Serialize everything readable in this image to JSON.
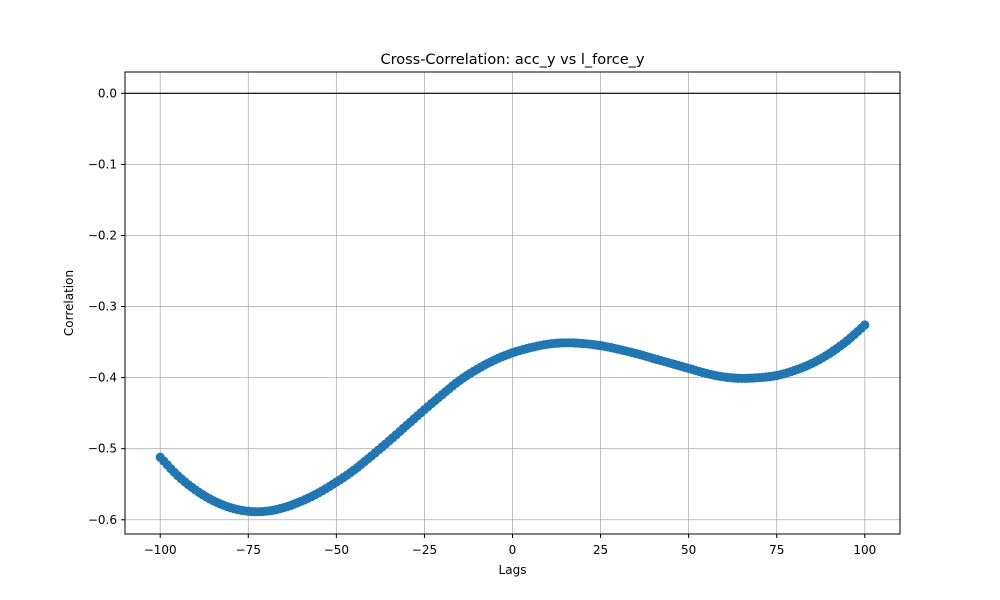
{
  "chart_data": {
    "type": "scatter",
    "title": "Cross-Correlation: acc_y vs l_force_y",
    "xlabel": "Lags",
    "ylabel": "Correlation",
    "xlim": [
      -110,
      110
    ],
    "ylim": [
      -0.62,
      0.03
    ],
    "x_ticks": [
      -100,
      -75,
      -50,
      -25,
      0,
      25,
      50,
      75,
      100
    ],
    "x_tick_labels": [
      "−100",
      "−75",
      "−50",
      "−25",
      "0",
      "25",
      "50",
      "75",
      "100"
    ],
    "y_ticks": [
      0.0,
      -0.1,
      -0.2,
      -0.3,
      -0.4,
      -0.5,
      -0.6
    ],
    "y_tick_labels": [
      "0.0",
      "−0.1",
      "−0.2",
      "−0.3",
      "−0.4",
      "−0.5",
      "−0.6"
    ],
    "grid": true,
    "zero_line": 0.0,
    "marker_color": "#1f77b4",
    "line_color": "#1f77b4",
    "key_points": [
      {
        "x": -100,
        "y": -0.512
      },
      {
        "x": -95,
        "y": -0.538
      },
      {
        "x": -90,
        "y": -0.558
      },
      {
        "x": -85,
        "y": -0.573
      },
      {
        "x": -80,
        "y": -0.583
      },
      {
        "x": -75,
        "y": -0.588
      },
      {
        "x": -70,
        "y": -0.588
      },
      {
        "x": -65,
        "y": -0.583
      },
      {
        "x": -60,
        "y": -0.574
      },
      {
        "x": -55,
        "y": -0.562
      },
      {
        "x": -50,
        "y": -0.547
      },
      {
        "x": -45,
        "y": -0.53
      },
      {
        "x": -40,
        "y": -0.51
      },
      {
        "x": -35,
        "y": -0.489
      },
      {
        "x": -30,
        "y": -0.467
      },
      {
        "x": -25,
        "y": -0.445
      },
      {
        "x": -20,
        "y": -0.424
      },
      {
        "x": -15,
        "y": -0.404
      },
      {
        "x": -10,
        "y": -0.388
      },
      {
        "x": -5,
        "y": -0.375
      },
      {
        "x": 0,
        "y": -0.365
      },
      {
        "x": 5,
        "y": -0.358
      },
      {
        "x": 10,
        "y": -0.353
      },
      {
        "x": 15,
        "y": -0.351
      },
      {
        "x": 20,
        "y": -0.352
      },
      {
        "x": 25,
        "y": -0.355
      },
      {
        "x": 30,
        "y": -0.36
      },
      {
        "x": 35,
        "y": -0.366
      },
      {
        "x": 40,
        "y": -0.373
      },
      {
        "x": 45,
        "y": -0.38
      },
      {
        "x": 50,
        "y": -0.387
      },
      {
        "x": 55,
        "y": -0.394
      },
      {
        "x": 60,
        "y": -0.399
      },
      {
        "x": 65,
        "y": -0.401
      },
      {
        "x": 70,
        "y": -0.4
      },
      {
        "x": 75,
        "y": -0.397
      },
      {
        "x": 80,
        "y": -0.39
      },
      {
        "x": 85,
        "y": -0.38
      },
      {
        "x": 90,
        "y": -0.366
      },
      {
        "x": 95,
        "y": -0.348
      },
      {
        "x": 100,
        "y": -0.326
      }
    ]
  }
}
